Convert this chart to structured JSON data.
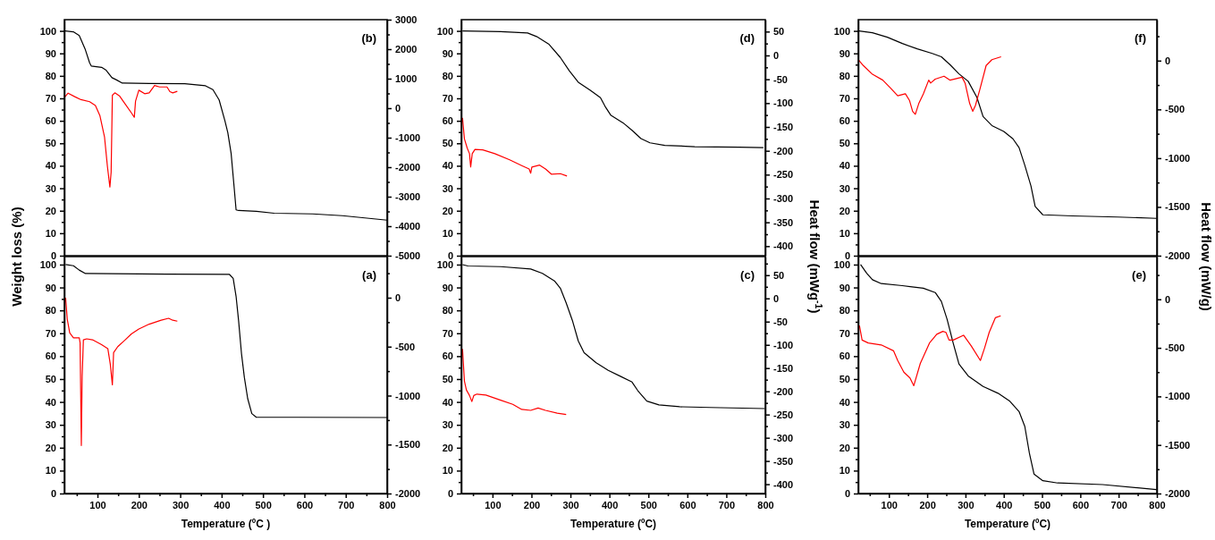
{
  "chart_data": [
    {
      "type": "line",
      "title": "(b)",
      "ylabel": "Weight loss (%)",
      "xlim": [
        20,
        800
      ],
      "ylim": [
        0,
        105
      ],
      "yticks": [
        0,
        {
          "value": 5,
          "label": null
        },
        10,
        {
          "value": 15,
          "label": null
        },
        20,
        {
          "value": 25,
          "label": null
        },
        30,
        {
          "value": 35,
          "label": null
        },
        40,
        {
          "value": 45,
          "label": null
        },
        50,
        {
          "value": 55,
          "label": null
        },
        60,
        {
          "value": 65,
          "label": null
        },
        70,
        {
          "value": 75,
          "label": null
        },
        80,
        {
          "value": 85,
          "label": null
        },
        90,
        {
          "value": 95,
          "label": null
        },
        100
      ],
      "y2lim": [
        -5000,
        3000
      ],
      "y2ticks": [
        -5000,
        {
          "value": -4500,
          "label": null
        },
        -4000,
        {
          "value": -3500,
          "label": null
        },
        -3000,
        {
          "value": -2500,
          "label": null
        },
        -2000,
        {
          "value": -1500,
          "label": null
        },
        -1000,
        {
          "value": -500,
          "label": null
        },
        0,
        {
          "value": 500,
          "label": null
        },
        1000,
        {
          "value": 1500,
          "label": null
        },
        2000,
        {
          "value": 2500,
          "label": null
        },
        3000
      ],
      "tick_labels": "y",
      "series": [
        {
          "color": "#000000",
          "x": [
            22,
            41.6,
            56,
            70,
            81,
            85,
            110,
            121,
            135,
            146,
            160,
            225,
            311,
            361,
            379,
            394,
            408,
            415,
            423,
            430,
            435,
            441,
            484,
            527,
            620,
            692,
            800
          ],
          "values": [
            100,
            99.6,
            97.9,
            92,
            85.8,
            84.4,
            83.8,
            82.5,
            79.2,
            78.2,
            76.8,
            76.6,
            76.5,
            75.6,
            73.9,
            69.3,
            60,
            54.7,
            45.5,
            31,
            20.4,
            20.1,
            19.7,
            18.9,
            18.6,
            17.8,
            15.8
          ]
        },
        {
          "color": "#ff0000",
          "axis": "y2",
          "x": [
            20,
            29,
            45,
            60,
            81,
            95,
            106,
            117,
            124,
            130,
            133,
            136,
            142,
            153,
            167,
            182,
            189,
            192,
            200,
            214,
            225,
            238,
            250,
            268,
            275,
            282,
            293
          ],
          "values": [
            360,
            510,
            390,
            290,
            220,
            90,
            -260,
            -970,
            -1970,
            -2670,
            -2170,
            440,
            520,
            420,
            140,
            -160,
            -310,
            240,
            610,
            490,
            520,
            770,
            720,
            720,
            560,
            520,
            570
          ]
        }
      ]
    },
    {
      "type": "line",
      "title": "(d)",
      "y2label": "Heat flow (mWg$^{-1}$)",
      "xlim": [
        20,
        800
      ],
      "ylim": [
        0,
        105
      ],
      "yticks": [
        0,
        {
          "value": 5,
          "label": null
        },
        10,
        {
          "value": 15,
          "label": null
        },
        20,
        {
          "value": 25,
          "label": null
        },
        30,
        {
          "value": 35,
          "label": null
        },
        40,
        {
          "value": 45,
          "label": null
        },
        50,
        {
          "value": 55,
          "label": null
        },
        60,
        {
          "value": 65,
          "label": null
        },
        70,
        {
          "value": 75,
          "label": null
        },
        80,
        {
          "value": 85,
          "label": null
        },
        90,
        {
          "value": 95,
          "label": null
        },
        100
      ],
      "y2lim": [
        -420,
        75
      ],
      "y2ticks": [
        -400,
        {
          "value": -375,
          "label": null
        },
        -350,
        {
          "value": -325,
          "label": null
        },
        -300,
        {
          "value": -275,
          "label": null
        },
        -250,
        {
          "value": -225,
          "label": null
        },
        -200,
        {
          "value": -175,
          "label": null
        },
        -150,
        {
          "value": -125,
          "label": null
        },
        -100,
        {
          "value": -75,
          "label": null
        },
        -50,
        {
          "value": -25,
          "label": null
        },
        0,
        {
          "value": 25,
          "label": null
        },
        50
      ],
      "tick_labels": "y",
      "series": [
        {
          "color": "#000000",
          "x": [
            23,
            121,
            190,
            213,
            244,
            274,
            297,
            320,
            351,
            377,
            389,
            404,
            435,
            458,
            481,
            504,
            542,
            619,
            733,
            795
          ],
          "values": [
            100,
            99.7,
            99.1,
            97.5,
            94.2,
            88.2,
            82.3,
            77.2,
            73.6,
            70.3,
            66.4,
            62.4,
            59.1,
            55.8,
            52.1,
            50.2,
            49.1,
            48.5,
            48.3,
            48.1
          ]
        },
        {
          "color": "#ff0000",
          "axis": "y2",
          "x": [
            23,
            28,
            35,
            41,
            44,
            48,
            55,
            75,
            106,
            144,
            175,
            194,
            198,
            201,
            221,
            236,
            251,
            274,
            291
          ],
          "values": [
            -131,
            -175,
            -194,
            -206,
            -234,
            -206,
            -197,
            -198,
            -206,
            -219,
            -231,
            -238,
            -247,
            -234,
            -230,
            -238,
            -249,
            -248,
            -253
          ]
        }
      ]
    },
    {
      "type": "line",
      "title": "(f)",
      "y2label": "Heat flow (mW/g)",
      "xlim": [
        20,
        800
      ],
      "ylim": [
        0,
        105
      ],
      "yticks": [
        0,
        {
          "value": 5,
          "label": null
        },
        10,
        {
          "value": 15,
          "label": null
        },
        20,
        {
          "value": 25,
          "label": null
        },
        30,
        {
          "value": 35,
          "label": null
        },
        40,
        {
          "value": 45,
          "label": null
        },
        50,
        {
          "value": 55,
          "label": null
        },
        60,
        {
          "value": 65,
          "label": null
        },
        70,
        {
          "value": 75,
          "label": null
        },
        80,
        {
          "value": 85,
          "label": null
        },
        90,
        {
          "value": 95,
          "label": null
        },
        100
      ],
      "y2lim": [
        -2000,
        420
      ],
      "y2ticks": [
        -2000,
        {
          "value": -1750,
          "label": null
        },
        -1500,
        {
          "value": -1250,
          "label": null
        },
        -1000,
        {
          "value": -750,
          "label": null
        },
        -500,
        {
          "value": -250,
          "label": null
        },
        0,
        {
          "value": 250,
          "label": null
        }
      ],
      "tick_labels": "y",
      "series": [
        {
          "color": "#000000",
          "x": [
            22,
            57,
            96,
            135,
            174,
            213,
            237,
            260,
            283,
            307,
            330,
            346,
            369,
            400,
            424,
            440,
            455,
            471,
            482,
            502,
            580,
            697,
            799
          ],
          "values": [
            100,
            99.2,
            97.2,
            94.4,
            92,
            90,
            88.5,
            84.9,
            80.9,
            77.6,
            70.4,
            61.9,
            57.9,
            55.3,
            52,
            48.1,
            40.2,
            31.1,
            21.9,
            18.2,
            17.7,
            17.2,
            16.6
          ]
        },
        {
          "color": "#ff0000",
          "axis": "y2",
          "x": [
            20,
            33,
            57,
            84,
            104,
            123,
            143,
            154,
            162,
            169,
            178,
            190,
            204,
            209,
            221,
            244,
            260,
            291,
            299,
            311,
            319,
            326,
            338,
            354,
            369,
            393
          ],
          "values": [
            10,
            -50,
            -140,
            -200,
            -280,
            -360,
            -340,
            -410,
            -520,
            -550,
            -440,
            -340,
            -200,
            -230,
            -190,
            -160,
            -200,
            -170,
            -230,
            -440,
            -520,
            -460,
            -290,
            -50,
            10,
            40
          ]
        }
      ]
    },
    {
      "type": "line",
      "title": "(a)",
      "xlabel": "Temperature (ºC )",
      "xlim": [
        20,
        800
      ],
      "xticks": [
        {
          "value": 50,
          "label": null
        },
        100,
        {
          "value": 150,
          "label": null
        },
        200,
        {
          "value": 250,
          "label": null
        },
        300,
        {
          "value": 350,
          "label": null
        },
        400,
        {
          "value": 450,
          "label": null
        },
        500,
        {
          "value": 550,
          "label": null
        },
        600,
        {
          "value": 650,
          "label": null
        },
        700,
        {
          "value": 750,
          "label": null
        },
        800
      ],
      "ylim": [
        0,
        103.5
      ],
      "yticks": [
        0,
        {
          "value": 5,
          "label": null
        },
        10,
        {
          "value": 15,
          "label": null
        },
        20,
        {
          "value": 25,
          "label": null
        },
        30,
        {
          "value": 35,
          "label": null
        },
        40,
        {
          "value": 45,
          "label": null
        },
        50,
        {
          "value": 55,
          "label": null
        },
        60,
        {
          "value": 65,
          "label": null
        },
        70,
        {
          "value": 75,
          "label": null
        },
        80,
        {
          "value": 85,
          "label": null
        },
        90,
        {
          "value": 95,
          "label": null
        },
        100
      ],
      "y2lim": [
        -2000,
        420
      ],
      "y2ticks": [
        -2000,
        {
          "value": -1750,
          "label": null
        },
        -1500,
        {
          "value": -1250,
          "label": null
        },
        -1000,
        {
          "value": -750,
          "label": null
        },
        -500,
        {
          "value": -250,
          "label": null
        },
        0,
        {
          "value": 250,
          "label": null
        }
      ],
      "series": [
        {
          "color": "#000000",
          "x": [
            23,
            42,
            56,
            71,
            268,
            419,
            428,
            435,
            441,
            448,
            455,
            463,
            473,
            484,
            584,
            800
          ],
          "values": [
            100,
            99.5,
            97.6,
            96.1,
            95.8,
            95.7,
            94,
            86.1,
            75.6,
            61.2,
            50.7,
            41.5,
            34.9,
            33.3,
            33.3,
            33.2
          ]
        },
        {
          "color": "#ff0000",
          "axis": "y2",
          "x": [
            23,
            27,
            33,
            42,
            56,
            58,
            61,
            63,
            66,
            74,
            88,
            110,
            125,
            131,
            136,
            139,
            149,
            167,
            182,
            200,
            225,
            254,
            272,
            282,
            293
          ],
          "values": [
            0,
            -220,
            -360,
            -410,
            -410,
            -460,
            -1510,
            -800,
            -430,
            -420,
            -430,
            -480,
            -520,
            -680,
            -890,
            -560,
            -500,
            -430,
            -370,
            -320,
            -270,
            -230,
            -210,
            -230,
            -240
          ]
        }
      ]
    },
    {
      "type": "line",
      "title": "(c)",
      "xlabel": "Temperature (ºC)",
      "xlim": [
        20,
        800
      ],
      "xticks": [
        {
          "value": 50,
          "label": null
        },
        100,
        {
          "value": 150,
          "label": null
        },
        200,
        {
          "value": 250,
          "label": null
        },
        300,
        {
          "value": 350,
          "label": null
        },
        400,
        {
          "value": 450,
          "label": null
        },
        500,
        {
          "value": 550,
          "label": null
        },
        600,
        {
          "value": 650,
          "label": null
        },
        700,
        {
          "value": 750,
          "label": null
        },
        800
      ],
      "ylim": [
        0,
        103.5
      ],
      "yticks": [
        0,
        {
          "value": 5,
          "label": null
        },
        10,
        {
          "value": 15,
          "label": null
        },
        20,
        {
          "value": 25,
          "label": null
        },
        30,
        {
          "value": 35,
          "label": null
        },
        40,
        {
          "value": 45,
          "label": null
        },
        50,
        {
          "value": 55,
          "label": null
        },
        60,
        {
          "value": 65,
          "label": null
        },
        70,
        {
          "value": 75,
          "label": null
        },
        80,
        {
          "value": 85,
          "label": null
        },
        90,
        {
          "value": 95,
          "label": null
        },
        100
      ],
      "y2lim": [
        -420,
        90
      ],
      "y2ticks": [
        -400,
        {
          "value": -375,
          "label": null
        },
        -350,
        {
          "value": -325,
          "label": null
        },
        -300,
        {
          "value": -275,
          "label": null
        },
        -250,
        {
          "value": -225,
          "label": null
        },
        -200,
        {
          "value": -175,
          "label": null
        },
        -150,
        {
          "value": -125,
          "label": null
        },
        -100,
        {
          "value": -75,
          "label": null
        },
        -50,
        {
          "value": -25,
          "label": null
        },
        0,
        {
          "value": 25,
          "label": null
        },
        50,
        {
          "value": 75,
          "label": null
        }
      ],
      "series": [
        {
          "color": "#000000",
          "x": [
            23,
            37,
            121,
            198,
            228,
            259,
            274,
            289,
            305,
            320,
            335,
            366,
            397,
            427,
            458,
            473,
            496,
            527,
            580,
            657,
            798
          ],
          "values": [
            100,
            99.4,
            99.1,
            98.1,
            96.2,
            92.9,
            89.7,
            83.3,
            75.6,
            66.7,
            61.5,
            57.1,
            53.8,
            51.3,
            48.7,
            44.9,
            40.4,
            38.7,
            37.9,
            37.6,
            37.1
          ]
        },
        {
          "color": "#ff0000",
          "axis": "y2",
          "x": [
            23,
            28,
            33,
            41,
            47,
            52,
            60,
            83,
            121,
            152,
            175,
            198,
            217,
            236,
            266,
            289
          ],
          "values": [
            -109,
            -178,
            -197,
            -209,
            -222,
            -209,
            -206,
            -208,
            -219,
            -228,
            -239,
            -241,
            -236,
            -241,
            -247,
            -250
          ]
        }
      ]
    },
    {
      "type": "line",
      "title": "(e)",
      "xlabel": "Temperature (ºC)",
      "xlim": [
        20,
        800
      ],
      "xticks": [
        {
          "value": 50,
          "label": null
        },
        100,
        {
          "value": 150,
          "label": null
        },
        200,
        {
          "value": 250,
          "label": null
        },
        300,
        {
          "value": 350,
          "label": null
        },
        400,
        {
          "value": 450,
          "label": null
        },
        500,
        {
          "value": 550,
          "label": null
        },
        600,
        {
          "value": 650,
          "label": null
        },
        700,
        {
          "value": 750,
          "label": null
        },
        800
      ],
      "ylim": [
        0,
        103.5
      ],
      "yticks": [
        0,
        {
          "value": 5,
          "label": null
        },
        10,
        {
          "value": 15,
          "label": null
        },
        20,
        {
          "value": 25,
          "label": null
        },
        30,
        {
          "value": 35,
          "label": null
        },
        40,
        {
          "value": 45,
          "label": null
        },
        50,
        {
          "value": 55,
          "label": null
        },
        60,
        {
          "value": 65,
          "label": null
        },
        70,
        {
          "value": 75,
          "label": null
        },
        80,
        {
          "value": 85,
          "label": null
        },
        90,
        {
          "value": 95,
          "label": null
        },
        100
      ],
      "y2lim": [
        -2000,
        440
      ],
      "y2ticks": [
        -2000,
        {
          "value": -1750,
          "label": null
        },
        -1500,
        {
          "value": -1250,
          "label": null
        },
        -1000,
        {
          "value": -750,
          "label": null
        },
        -500,
        {
          "value": -250,
          "label": null
        },
        0,
        {
          "value": 250,
          "label": null
        }
      ],
      "series": [
        {
          "color": "#000000",
          "x": [
            26,
            42,
            57,
            80,
            135,
            190,
            221,
            237,
            252,
            268,
            283,
            307,
            346,
            385,
            416,
            440,
            455,
            467,
            479,
            502,
            541,
            658,
            799
          ],
          "values": [
            100,
            96.2,
            93.4,
            91.7,
            90.8,
            89.7,
            87.8,
            83.9,
            76.1,
            65.7,
            56.6,
            51.4,
            46.8,
            43.8,
            40.3,
            35.8,
            29.3,
            17.6,
            8.5,
            5.6,
            4.6,
            3.9,
            1.7
          ]
        },
        {
          "color": "#ff0000",
          "axis": "y2",
          "x": [
            23,
            30,
            46,
            80,
            112,
            123,
            139,
            155,
            165,
            182,
            206,
            225,
            241,
            249,
            257,
            268,
            295,
            315,
            339,
            350,
            362,
            378,
            392
          ],
          "values": [
            -270,
            -420,
            -450,
            -470,
            -530,
            -630,
            -750,
            -810,
            -890,
            -660,
            -450,
            -360,
            -330,
            -340,
            -420,
            -420,
            -370,
            -480,
            -630,
            -500,
            -340,
            -190,
            -170
          ]
        }
      ]
    }
  ]
}
